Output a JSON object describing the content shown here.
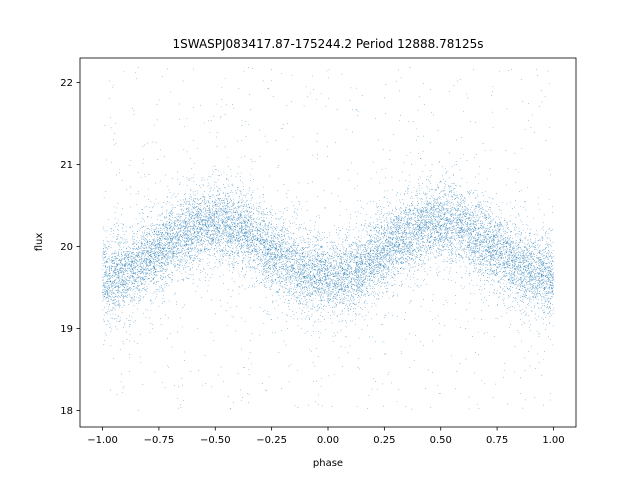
{
  "chart_data": {
    "type": "scatter",
    "title": "1SWASPJ083417.87-175244.2 Period 12888.78125s",
    "xlabel": "phase",
    "ylabel": "flux",
    "xlim": [
      -1.1,
      1.1
    ],
    "ylim": [
      17.8,
      22.3
    ],
    "xticks": [
      -1.0,
      -0.75,
      -0.5,
      -0.25,
      0.0,
      0.25,
      0.5,
      0.75,
      1.0
    ],
    "xtick_labels": [
      "−1.00",
      "−0.75",
      "−0.50",
      "−0.25",
      "0.00",
      "0.25",
      "0.50",
      "0.75",
      "1.00"
    ],
    "yticks": [
      18,
      19,
      20,
      21,
      22
    ],
    "ytick_labels": [
      "18",
      "19",
      "20",
      "21",
      "22"
    ],
    "grid": false,
    "series": [
      {
        "color": "#1f77b4",
        "marker_size": 0.7,
        "model": {
          "mean_flux": 19.95,
          "amplitude": 0.33,
          "maxima_phase": [
            -0.5,
            0.5
          ],
          "minima_phase": [
            -1.0,
            0.0,
            1.0
          ],
          "scatter_sigma": 0.23,
          "outlier_range": [
            18.0,
            22.2
          ],
          "x_range": [
            -1.0,
            1.0
          ],
          "n_points": 14000,
          "n_outliers": 800
        }
      }
    ]
  }
}
